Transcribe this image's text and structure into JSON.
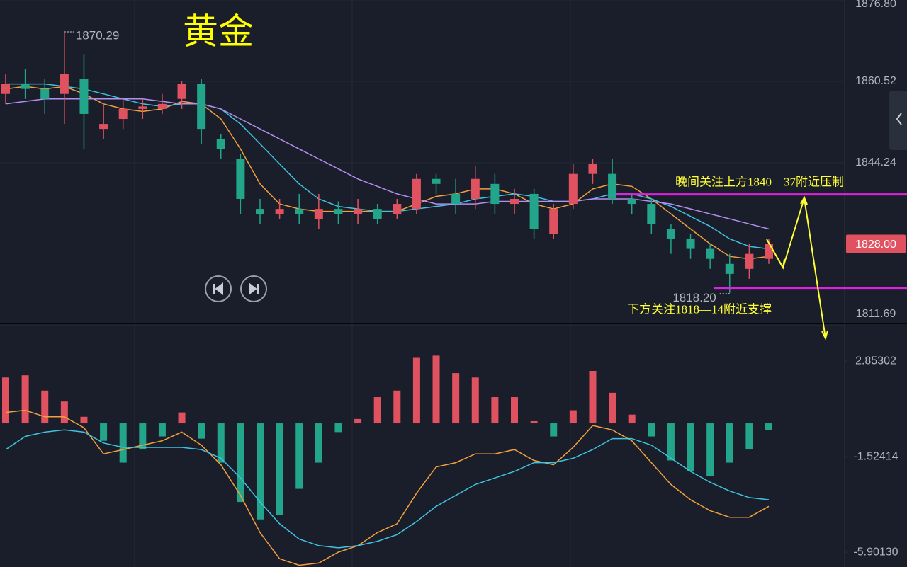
{
  "chart_data": [
    {
      "type": "candlestick",
      "title": "黄金",
      "open": [
        1858,
        1860,
        1859,
        1858,
        1861,
        1851,
        1853,
        1855,
        1855,
        1857,
        1860,
        1849,
        1845,
        1835,
        1834,
        1835,
        1833,
        1835,
        1834,
        1835,
        1834,
        1835,
        1841,
        1838,
        1837,
        1840,
        1836,
        1838,
        1830,
        1836,
        1842,
        1842,
        1837,
        1836,
        1831,
        1829,
        1827,
        1824,
        1823,
        1825
      ],
      "high": [
        1862,
        1863,
        1861,
        1870.29,
        1866,
        1856,
        1857,
        1857,
        1858,
        1860.5,
        1861,
        1850,
        1846,
        1837,
        1837,
        1838,
        1838,
        1836.5,
        1837,
        1836,
        1837,
        1842,
        1842,
        1841,
        1843.5,
        1842,
        1839,
        1839,
        1836,
        1844,
        1845,
        1845,
        1838,
        1837,
        1832,
        1830,
        1828,
        1826,
        1828,
        1829
      ],
      "low": [
        1856,
        1857,
        1854,
        1852,
        1847,
        1849,
        1851,
        1853,
        1854,
        1855,
        1848,
        1845,
        1834,
        1832,
        1833,
        1832,
        1831,
        1832,
        1832,
        1832,
        1833,
        1834,
        1838,
        1834,
        1835,
        1834,
        1834,
        1829,
        1829,
        1835,
        1840,
        1836,
        1834,
        1830,
        1826,
        1825,
        1823,
        1818.2,
        1821,
        1824
      ],
      "close": [
        1860,
        1859,
        1857,
        1862,
        1854,
        1852,
        1855,
        1855.5,
        1856,
        1860,
        1851,
        1847,
        1837,
        1834,
        1835,
        1834,
        1835,
        1834,
        1835,
        1833,
        1836,
        1841,
        1840,
        1836,
        1841,
        1836,
        1837,
        1831,
        1835,
        1842,
        1844,
        1837,
        1836,
        1832,
        1829,
        1827,
        1825,
        1822,
        1826,
        1828
      ],
      "up_color": "#e0525f",
      "down_color": "#22a58a",
      "series": [
        {
          "color": "#f2a03d",
          "values": [
            1859,
            1859.5,
            1859,
            1859.5,
            1858,
            1856,
            1855,
            1854.5,
            1855,
            1856.5,
            1856,
            1853,
            1847,
            1840,
            1836,
            1835,
            1834.5,
            1834.5,
            1834.5,
            1834.5,
            1834.5,
            1836,
            1837.5,
            1838,
            1839,
            1839,
            1838,
            1836,
            1835,
            1836,
            1839,
            1840,
            1839.5,
            1837,
            1834,
            1831,
            1828,
            1825.5,
            1825,
            1825.5
          ]
        },
        {
          "color": "#3fc3e0",
          "values": [
            1860,
            1860,
            1860,
            1859.5,
            1859,
            1858,
            1857,
            1856,
            1855.5,
            1856,
            1856,
            1855,
            1852,
            1848,
            1844,
            1840,
            1837,
            1835.5,
            1835,
            1834.5,
            1834.5,
            1835,
            1835.5,
            1836,
            1837,
            1837.5,
            1838,
            1837.5,
            1836.5,
            1836.5,
            1837,
            1838,
            1838,
            1837,
            1835.5,
            1833.5,
            1831.5,
            1829,
            1827.5,
            1827
          ]
        },
        {
          "color": "#b48ef0",
          "values": [
            1856,
            1856.5,
            1857,
            1857,
            1857,
            1857,
            1857,
            1857,
            1856.5,
            1856,
            1856,
            1855,
            1853,
            1851,
            1849,
            1847,
            1845,
            1843,
            1841,
            1839.5,
            1838,
            1837,
            1836,
            1836,
            1836,
            1836.5,
            1836.5,
            1836.5,
            1836.5,
            1836.5,
            1837,
            1837,
            1837,
            1836.5,
            1836,
            1835,
            1834,
            1833,
            1832,
            1831
          ]
        }
      ],
      "ylim": [
        1812.07,
        1876.8
      ],
      "yticks": [
        {
          "value": 1876.8,
          "label": "1876.80"
        },
        1860.52,
        1844.24,
        1811.69
      ],
      "last_price": {
        "value": 1828,
        "label": "1828.00"
      },
      "high_label": "1870.29",
      "low_label": "1818.20",
      "levels": [
        1837.9,
        1819.2
      ],
      "level_color": "#e020e0",
      "resistance_note": "晚间关注上方1840—37附近压制",
      "support_note": "下方关注1818—14附近支撑"
    },
    {
      "type": "macd",
      "histogram": [
        2.1,
        2.2,
        1.5,
        1.0,
        0.3,
        -0.8,
        -1.8,
        -1.2,
        -0.6,
        0.5,
        -0.7,
        -1.8,
        -3.6,
        -4.4,
        -4.2,
        -3.0,
        -1.8,
        -0.4,
        0.2,
        1.2,
        1.5,
        3.0,
        3.1,
        2.3,
        2.1,
        1.2,
        1.2,
        0.1,
        -0.6,
        0.6,
        2.4,
        1.4,
        0.4,
        -0.6,
        -1.7,
        -2.2,
        -2.4,
        -1.8,
        -1.2,
        -0.3
      ],
      "up_color": "#e0525f",
      "down_color": "#22a58a",
      "series": [
        {
          "color": "#f2a03d",
          "values": [
            0.5,
            0.6,
            0.3,
            0.3,
            -0.2,
            -1.4,
            -1.2,
            -1.0,
            -0.8,
            -0.4,
            -1.0,
            -1.9,
            -3.3,
            -5.0,
            -6.2,
            -6.5,
            -6.4,
            -5.9,
            -5.6,
            -5.0,
            -4.6,
            -3.2,
            -2.0,
            -1.8,
            -1.4,
            -1.4,
            -1.2,
            -1.7,
            -1.9,
            -1.1,
            -0.1,
            -0.3,
            -0.8,
            -1.8,
            -2.8,
            -3.5,
            -4.0,
            -4.3,
            -4.3,
            -3.8
          ]
        },
        {
          "color": "#3fc3e0",
          "values": [
            -1.2,
            -0.6,
            -0.4,
            -0.3,
            -0.4,
            -0.9,
            -1.1,
            -1.1,
            -1.1,
            -1.1,
            -1.2,
            -1.6,
            -2.5,
            -3.6,
            -4.6,
            -5.3,
            -5.6,
            -5.7,
            -5.6,
            -5.4,
            -5.1,
            -4.5,
            -3.8,
            -3.3,
            -2.8,
            -2.5,
            -2.2,
            -1.8,
            -1.8,
            -1.6,
            -1.2,
            -0.7,
            -0.7,
            -1.0,
            -1.6,
            -2.2,
            -2.7,
            -3.1,
            -3.4,
            -3.5
          ]
        }
      ],
      "ylim": [
        -6.58,
        4.54
      ],
      "yticks": [
        2.85302,
        -1.52414,
        {
          "value": -5.9013,
          "label": "-5.90130"
        }
      ]
    }
  ]
}
